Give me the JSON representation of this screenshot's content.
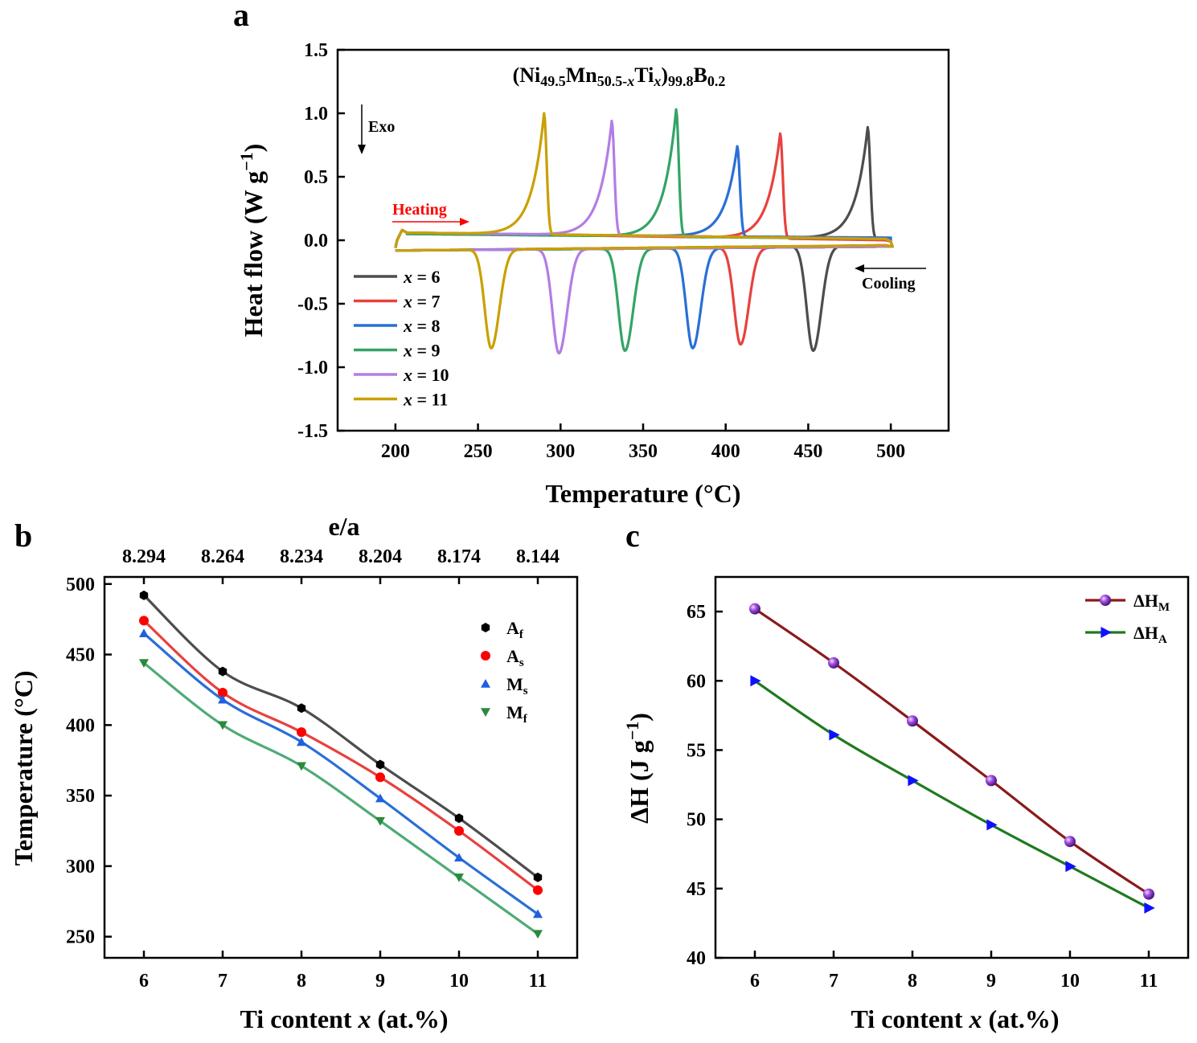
{
  "panels": {
    "a": "a",
    "b": "b",
    "c": "c"
  },
  "chart_data": [
    {
      "id": "a",
      "type": "line",
      "title_parts": [
        "(Ni",
        "49.5",
        "Mn",
        "50.5-",
        "x",
        "Ti",
        "x",
        ")",
        "99.8",
        "B",
        "0.2"
      ],
      "xlabel": "Temperature (°C)",
      "ylabel_parts": [
        "Heat flow (W g",
        "−1",
        ")"
      ],
      "xlim": [
        165,
        535
      ],
      "ylim": [
        -1.5,
        1.5
      ],
      "xticks": [
        200,
        250,
        300,
        350,
        400,
        450,
        500
      ],
      "yticks": [
        -1.5,
        -1.0,
        -0.5,
        0.0,
        0.5,
        1.0,
        1.5
      ],
      "ytick_labels": [
        "-1.5",
        "-1.0",
        "-0.5",
        "0.0",
        "0.5",
        "1.0",
        "1.5"
      ],
      "annotations": {
        "exo": "Exo",
        "heating": "Heating",
        "cooling": "Cooling"
      },
      "legend_position": "lower-left",
      "series": [
        {
          "name_parts": [
            "x",
            " = 6"
          ],
          "color": "#4d4d4d",
          "heat_peak_T": 486,
          "heat_peak_H": 0.89,
          "cool_peak_T": 453,
          "cool_peak_H": -0.87,
          "heat_base_T0": 205,
          "heat_base_T1": 500,
          "heat_base_H0": 0.06,
          "heat_base_H1": 0.01,
          "cool_base_H0": -0.08,
          "cool_base_H1": -0.04,
          "end_T": 497
        },
        {
          "name_parts": [
            "x",
            " = 7"
          ],
          "color": "#e8413e",
          "heat_peak_T": 433,
          "heat_peak_H": 0.84,
          "cool_peak_T": 409,
          "cool_peak_H": -0.82,
          "heat_base_T0": 205,
          "heat_base_T1": 500,
          "heat_base_H0": 0.06,
          "heat_base_H1": 0.0,
          "cool_base_H0": -0.08,
          "cool_base_H1": -0.05,
          "end_T": 497
        },
        {
          "name_parts": [
            "x",
            " = 8"
          ],
          "color": "#2a6fd6",
          "heat_peak_T": 407,
          "heat_peak_H": 0.74,
          "cool_peak_T": 380,
          "cool_peak_H": -0.85,
          "heat_base_T0": 205,
          "heat_base_T1": 500,
          "heat_base_H0": 0.05,
          "heat_base_H1": 0.02,
          "cool_base_H0": -0.08,
          "cool_base_H1": -0.05,
          "end_T": 500
        },
        {
          "name_parts": [
            "x",
            " = 9"
          ],
          "color": "#33a466",
          "heat_peak_T": 370,
          "heat_peak_H": 1.03,
          "cool_peak_T": 339,
          "cool_peak_H": -0.87,
          "heat_base_T0": 205,
          "heat_base_T1": 500,
          "heat_base_H0": 0.05,
          "heat_base_H1": 0.01,
          "cool_base_H0": -0.08,
          "cool_base_H1": -0.05,
          "end_T": 497
        },
        {
          "name_parts": [
            "x",
            " = 10"
          ],
          "color": "#b37de3",
          "heat_peak_T": 331,
          "heat_peak_H": 0.94,
          "cool_peak_T": 299,
          "cool_peak_H": -0.89,
          "heat_base_T0": 205,
          "heat_base_T1": 500,
          "heat_base_H0": 0.06,
          "heat_base_H1": 0.01,
          "cool_base_H0": -0.08,
          "cool_base_H1": -0.05,
          "end_T": 497
        },
        {
          "name_parts": [
            "x",
            " = 11"
          ],
          "color": "#c9a000",
          "heat_peak_T": 290,
          "heat_peak_H": 1.0,
          "cool_peak_T": 258,
          "cool_peak_H": -0.85,
          "heat_base_T0": 205,
          "heat_base_T1": 500,
          "heat_base_H0": 0.06,
          "heat_base_H1": 0.01,
          "cool_base_H0": -0.08,
          "cool_base_H1": -0.04,
          "end_T": 497
        }
      ]
    },
    {
      "id": "b",
      "type": "line",
      "xlabel_parts": [
        "Ti content ",
        "x",
        " (at.%)"
      ],
      "ylabel": "Temperature (°C)",
      "top_xlabel": "e/a",
      "top_ticks": [
        "8.294",
        "8.264",
        "8.234",
        "8.204",
        "8.174",
        "8.144"
      ],
      "x": [
        6,
        7,
        8,
        9,
        10,
        11
      ],
      "xlim": [
        5.5,
        11.5
      ],
      "ylim": [
        235,
        505
      ],
      "yticks": [
        250,
        300,
        350,
        400,
        450,
        500
      ],
      "legend_position": "top-right",
      "series": [
        {
          "name": "A",
          "sub": "f",
          "marker": "hexagon",
          "color": "#000000",
          "line_color": "#4d4d4d",
          "values": [
            492,
            438,
            412,
            372,
            334,
            292
          ]
        },
        {
          "name": "A",
          "sub": "s",
          "marker": "circle",
          "color": "#ff0000",
          "line_color": "#e8413e",
          "values": [
            474,
            423,
            395,
            363,
            325,
            283
          ]
        },
        {
          "name": "M",
          "sub": "s",
          "marker": "triangle-up",
          "color": "#1f5fe0",
          "line_color": "#2a6fd6",
          "values": [
            465,
            418,
            388,
            348,
            306,
            266
          ]
        },
        {
          "name": "M",
          "sub": "f",
          "marker": "triangle-down",
          "color": "#2a8a3a",
          "line_color": "#4fab76",
          "values": [
            444,
            400,
            371,
            332,
            292,
            252
          ]
        }
      ]
    },
    {
      "id": "c",
      "type": "line",
      "xlabel_parts": [
        "Ti content ",
        "x",
        " (at.%)"
      ],
      "ylabel_parts": [
        "ΔH (J g",
        "−1",
        ")"
      ],
      "x": [
        6,
        7,
        8,
        9,
        10,
        11
      ],
      "xlim": [
        5.5,
        11.5
      ],
      "ylim": [
        40,
        67.5
      ],
      "yticks": [
        40,
        45,
        50,
        55,
        60,
        65
      ],
      "legend_position": "top-right",
      "series": [
        {
          "name": "ΔH",
          "sub": "M",
          "marker": "sphere",
          "color": "#a04de0",
          "line_color": "#8b1a1a",
          "values": [
            65.2,
            61.3,
            57.1,
            52.8,
            48.4,
            44.6
          ]
        },
        {
          "name": "ΔH",
          "sub": "A",
          "marker": "triangle-right",
          "color": "#1010ff",
          "line_color": "#1f7a1f",
          "values": [
            60.0,
            56.1,
            52.8,
            49.6,
            46.6,
            43.6
          ]
        }
      ]
    }
  ]
}
